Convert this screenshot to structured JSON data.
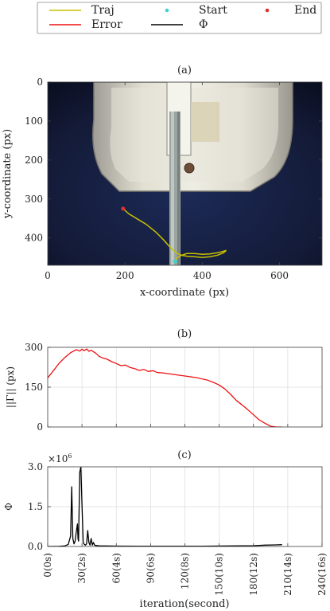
{
  "legend": {
    "items": [
      {
        "label": "Traj",
        "kind": "line",
        "color": "#c8c000"
      },
      {
        "label": "Start",
        "kind": "dot",
        "color": "#40d0d0"
      },
      {
        "label": "End",
        "kind": "dot",
        "color": "#e03030"
      },
      {
        "label": "Error",
        "kind": "line",
        "color": "#ee1111"
      },
      {
        "label": "Φ",
        "kind": "line",
        "color": "#000000"
      }
    ]
  },
  "chart_data": [
    {
      "panel": "(a)",
      "type": "scatter",
      "xlabel": "x-coordinate (px)",
      "ylabel": "y-coordinate (px)",
      "xlim": [
        0,
        710
      ],
      "ylim": [
        0,
        470
      ],
      "y_inverted": true,
      "xticks": [
        0,
        200,
        400,
        600
      ],
      "yticks": [
        0,
        100,
        200,
        300,
        400
      ],
      "background": "camera image of a gripper with a vertical rod",
      "series": [
        {
          "name": "Traj",
          "color": "#c8c000",
          "x": [
            330,
            334,
            345,
            360,
            380,
            400,
            420,
            440,
            455,
            462,
            455,
            440,
            420,
            400,
            380,
            362,
            350,
            340,
            333,
            326,
            318,
            300,
            280,
            255,
            230,
            210,
            195
          ],
          "y": [
            460,
            452,
            445,
            440,
            440,
            442,
            441,
            438,
            434,
            432,
            438,
            444,
            448,
            450,
            448,
            447,
            445,
            442,
            438,
            432,
            425,
            405,
            385,
            365,
            350,
            338,
            325
          ]
        }
      ],
      "start": [
        330,
        460
      ],
      "end": [
        195,
        325
      ]
    },
    {
      "panel": "(b)",
      "type": "line",
      "ylabel": "||Γ|| (px)",
      "xlim": [
        0,
        240
      ],
      "ylim": [
        0,
        300
      ],
      "xticks": [
        0,
        30,
        60,
        90,
        120,
        150,
        180,
        210,
        240
      ],
      "yticks": [
        0,
        150,
        300
      ],
      "grid": true,
      "series": [
        {
          "name": "Error",
          "color": "#ee1111",
          "x": [
            0,
            5,
            10,
            15,
            20,
            25,
            28,
            30,
            32,
            34,
            36,
            38,
            42,
            45,
            48,
            52,
            56,
            60,
            64,
            68,
            72,
            76,
            80,
            84,
            88,
            92,
            96,
            100,
            110,
            120,
            130,
            140,
            145,
            150,
            155,
            160,
            165,
            170,
            175,
            180,
            185,
            190,
            195,
            200,
            205
          ],
          "y": [
            185,
            212,
            240,
            262,
            280,
            291,
            286,
            293,
            287,
            294,
            285,
            289,
            278,
            266,
            260,
            255,
            246,
            239,
            231,
            233,
            224,
            220,
            213,
            217,
            209,
            212,
            205,
            204,
            198,
            192,
            186,
            176,
            168,
            158,
            143,
            123,
            100,
            83,
            65,
            46,
            27,
            14,
            3,
            0,
            0
          ]
        }
      ]
    },
    {
      "panel": "(c)",
      "type": "line",
      "xlabel": "iteration(second)",
      "ylabel": "Φ",
      "multiplier": "×10",
      "multiplier_exp": "6",
      "xlim": [
        0,
        240
      ],
      "ylim": [
        0,
        3.0
      ],
      "xticks": [
        0,
        30,
        60,
        90,
        120,
        150,
        180,
        210,
        240
      ],
      "xticklabels": [
        "0(0s)",
        "30(2s)",
        "60(4s)",
        "90(6s)",
        "120(8s)",
        "150(10s)",
        "180(12s)",
        "210(14s)",
        "240(16s)"
      ],
      "yticks": [
        0,
        1.5,
        3.0
      ],
      "yticklabels": [
        "0.0",
        "1.5",
        "3.0"
      ],
      "grid": true,
      "series": [
        {
          "name": "Φ",
          "color": "#000000",
          "x": [
            0,
            10,
            15,
            18,
            20,
            21,
            22,
            23,
            24,
            25,
            26,
            26.5,
            27,
            28,
            29,
            30,
            31,
            32,
            33,
            34,
            35,
            36,
            37,
            38,
            39,
            40,
            41,
            42,
            44,
            46,
            50,
            60,
            80,
            100,
            130,
            160,
            180,
            190,
            200,
            205
          ],
          "y": [
            0,
            0.005,
            0.02,
            0.08,
            0.4,
            2.25,
            0.3,
            0.1,
            0.2,
            0.55,
            0.85,
            0.3,
            0.2,
            2.8,
            3.0,
            1.6,
            0.15,
            0.08,
            0.05,
            0.1,
            0.6,
            0.15,
            0.05,
            0.3,
            0.05,
            0.15,
            0.05,
            0.04,
            0.03,
            0.02,
            0.02,
            0.015,
            0.01,
            0.01,
            0.01,
            0.02,
            0.03,
            0.05,
            0.06,
            0.07
          ]
        }
      ]
    }
  ]
}
